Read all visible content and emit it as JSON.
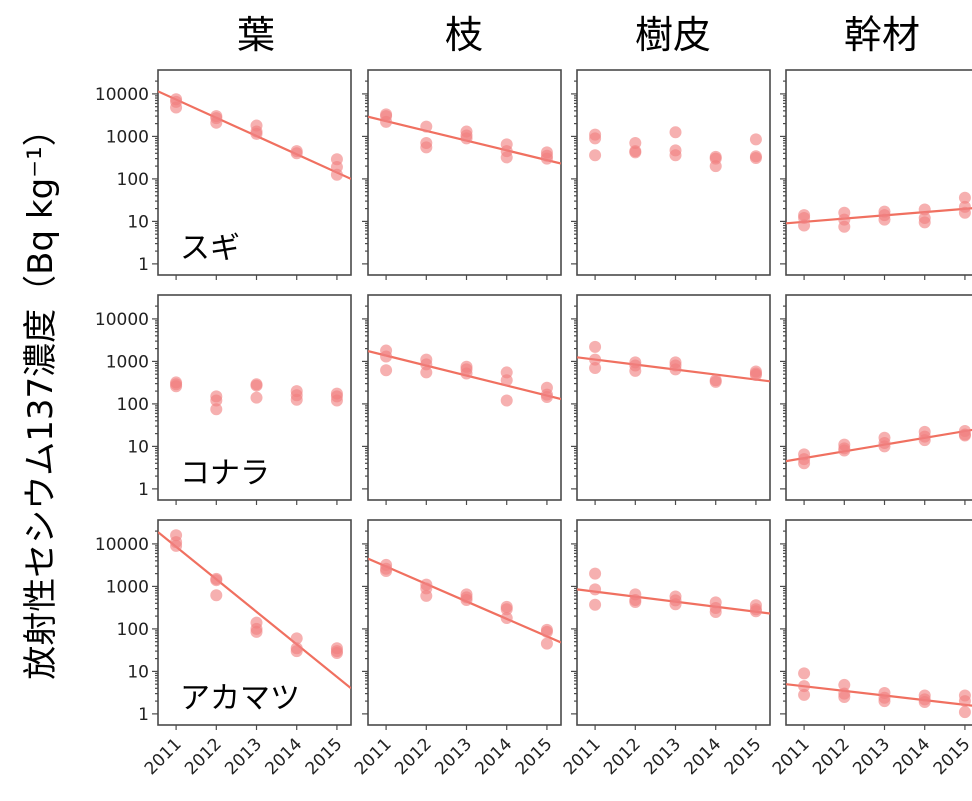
{
  "chart_data": {
    "type": "scatter",
    "ylabel": "放射性セシウム137濃度（Bq kg⁻¹）",
    "yscale": "log",
    "ylim": [
      0.8,
      25000
    ],
    "yticks": [
      1,
      10,
      100,
      1000,
      10000
    ],
    "ytick_labels": [
      "1",
      "10",
      "100",
      "1000",
      "10000"
    ],
    "xlim": [
      2010.55,
      2015.35
    ],
    "xticks": [
      "2011",
      "2012",
      "2013",
      "2014",
      "2015"
    ],
    "columns": [
      "葉",
      "枝",
      "樹皮",
      "幹材"
    ],
    "rows": [
      "スギ",
      "コナラ",
      "アカマツ"
    ],
    "colors": {
      "point": "#f08080",
      "line": "#f07060",
      "frame": "#4a4a4a"
    },
    "panels": [
      {
        "row": "スギ",
        "col": "葉",
        "points": [
          [
            2011,
            7500
          ],
          [
            2011,
            6500
          ],
          [
            2011,
            4800
          ],
          [
            2012,
            3000
          ],
          [
            2012,
            2700
          ],
          [
            2012,
            2100
          ],
          [
            2013,
            1800
          ],
          [
            2013,
            1300
          ],
          [
            2013,
            1150
          ],
          [
            2014,
            450
          ],
          [
            2014,
            400
          ],
          [
            2015,
            290
          ],
          [
            2015,
            190
          ],
          [
            2015,
            125
          ]
        ],
        "fit": [
          [
            2010.55,
            11500
          ],
          [
            2015.35,
            100
          ]
        ]
      },
      {
        "row": "スギ",
        "col": "枝",
        "points": [
          [
            2011,
            3300
          ],
          [
            2011,
            3000
          ],
          [
            2011,
            2200
          ],
          [
            2012,
            1700
          ],
          [
            2012,
            700
          ],
          [
            2012,
            550
          ],
          [
            2013,
            1300
          ],
          [
            2013,
            1050
          ],
          [
            2013,
            900
          ],
          [
            2014,
            650
          ],
          [
            2014,
            450
          ],
          [
            2014,
            320
          ],
          [
            2015,
            420
          ],
          [
            2015,
            350
          ],
          [
            2015,
            300
          ]
        ],
        "fit": [
          [
            2010.55,
            2900
          ],
          [
            2015.35,
            230
          ]
        ]
      },
      {
        "row": "スギ",
        "col": "樹皮",
        "points": [
          [
            2011,
            1100
          ],
          [
            2011,
            900
          ],
          [
            2011,
            360
          ],
          [
            2012,
            700
          ],
          [
            2012,
            450
          ],
          [
            2012,
            420
          ],
          [
            2013,
            1250
          ],
          [
            2013,
            470
          ],
          [
            2013,
            360
          ],
          [
            2014,
            330
          ],
          [
            2014,
            300
          ],
          [
            2014,
            200
          ],
          [
            2015,
            850
          ],
          [
            2015,
            340
          ],
          [
            2015,
            310
          ]
        ],
        "fit": null
      },
      {
        "row": "スギ",
        "col": "幹材",
        "points": [
          [
            2011,
            14
          ],
          [
            2011,
            12
          ],
          [
            2011,
            8
          ],
          [
            2012,
            16
          ],
          [
            2012,
            11
          ],
          [
            2012,
            7.5
          ],
          [
            2013,
            17
          ],
          [
            2013,
            14
          ],
          [
            2013,
            11
          ],
          [
            2014,
            19
          ],
          [
            2014,
            12
          ],
          [
            2014,
            9.5
          ],
          [
            2015,
            36
          ],
          [
            2015,
            22
          ],
          [
            2015,
            16
          ]
        ],
        "fit": [
          [
            2010.55,
            9
          ],
          [
            2015.35,
            21
          ]
        ]
      },
      {
        "row": "コナラ",
        "col": "葉",
        "points": [
          [
            2011,
            320
          ],
          [
            2011,
            290
          ],
          [
            2011,
            260
          ],
          [
            2012,
            150
          ],
          [
            2012,
            120
          ],
          [
            2012,
            75
          ],
          [
            2013,
            290
          ],
          [
            2013,
            270
          ],
          [
            2013,
            140
          ],
          [
            2014,
            200
          ],
          [
            2014,
            160
          ],
          [
            2014,
            125
          ],
          [
            2015,
            175
          ],
          [
            2015,
            150
          ],
          [
            2015,
            120
          ]
        ],
        "fit": null
      },
      {
        "row": "コナラ",
        "col": "枝",
        "points": [
          [
            2011,
            1800
          ],
          [
            2011,
            1300
          ],
          [
            2011,
            620
          ],
          [
            2012,
            1100
          ],
          [
            2012,
            850
          ],
          [
            2012,
            550
          ],
          [
            2013,
            750
          ],
          [
            2013,
            650
          ],
          [
            2013,
            520
          ],
          [
            2014,
            550
          ],
          [
            2014,
            360
          ],
          [
            2014,
            120
          ],
          [
            2015,
            240
          ],
          [
            2015,
            165
          ],
          [
            2015,
            145
          ]
        ],
        "fit": [
          [
            2010.55,
            1750
          ],
          [
            2015.35,
            130
          ]
        ]
      },
      {
        "row": "コナラ",
        "col": "樹皮",
        "points": [
          [
            2011,
            2200
          ],
          [
            2011,
            1100
          ],
          [
            2011,
            700
          ],
          [
            2012,
            950
          ],
          [
            2012,
            800
          ],
          [
            2012,
            600
          ],
          [
            2013,
            950
          ],
          [
            2013,
            800
          ],
          [
            2013,
            650
          ],
          [
            2014,
            360
          ],
          [
            2014,
            330
          ],
          [
            2015,
            580
          ],
          [
            2015,
            520
          ],
          [
            2015,
            480
          ]
        ],
        "fit": [
          [
            2010.55,
            1250
          ],
          [
            2015.35,
            340
          ]
        ]
      },
      {
        "row": "コナラ",
        "col": "幹材",
        "points": [
          [
            2011,
            6.5
          ],
          [
            2011,
            5
          ],
          [
            2011,
            4
          ],
          [
            2012,
            11
          ],
          [
            2012,
            9
          ],
          [
            2012,
            8
          ],
          [
            2013,
            16
          ],
          [
            2013,
            12
          ],
          [
            2013,
            10
          ],
          [
            2014,
            22
          ],
          [
            2014,
            17
          ],
          [
            2014,
            14
          ],
          [
            2015,
            23
          ],
          [
            2015,
            19
          ],
          [
            2015,
            18
          ]
        ],
        "fit": [
          [
            2010.55,
            4.5
          ],
          [
            2015.35,
            26
          ]
        ]
      },
      {
        "row": "アカマツ",
        "col": "葉",
        "points": [
          [
            2011,
            16000
          ],
          [
            2011,
            11000
          ],
          [
            2011,
            9000
          ],
          [
            2012,
            1500
          ],
          [
            2012,
            1400
          ],
          [
            2012,
            620
          ],
          [
            2013,
            140
          ],
          [
            2013,
            100
          ],
          [
            2013,
            85
          ],
          [
            2014,
            60
          ],
          [
            2014,
            35
          ],
          [
            2014,
            30
          ],
          [
            2015,
            35
          ],
          [
            2015,
            30
          ],
          [
            2015,
            27
          ]
        ],
        "fit": [
          [
            2010.55,
            19000
          ],
          [
            2015.35,
            4
          ]
        ]
      },
      {
        "row": "アカマツ",
        "col": "枝",
        "points": [
          [
            2011,
            3200
          ],
          [
            2011,
            2600
          ],
          [
            2011,
            2300
          ],
          [
            2012,
            1100
          ],
          [
            2012,
            900
          ],
          [
            2012,
            600
          ],
          [
            2013,
            650
          ],
          [
            2013,
            550
          ],
          [
            2013,
            480
          ],
          [
            2014,
            330
          ],
          [
            2014,
            290
          ],
          [
            2014,
            180
          ],
          [
            2015,
            95
          ],
          [
            2015,
            85
          ],
          [
            2015,
            45
          ]
        ],
        "fit": [
          [
            2010.55,
            4500
          ],
          [
            2015.35,
            48
          ]
        ]
      },
      {
        "row": "アカマツ",
        "col": "樹皮",
        "points": [
          [
            2011,
            2000
          ],
          [
            2011,
            850
          ],
          [
            2011,
            370
          ],
          [
            2012,
            650
          ],
          [
            2012,
            480
          ],
          [
            2012,
            430
          ],
          [
            2013,
            580
          ],
          [
            2013,
            470
          ],
          [
            2013,
            380
          ],
          [
            2014,
            420
          ],
          [
            2014,
            310
          ],
          [
            2014,
            250
          ],
          [
            2015,
            360
          ],
          [
            2015,
            290
          ],
          [
            2015,
            260
          ]
        ],
        "fit": [
          [
            2010.55,
            850
          ],
          [
            2015.35,
            230
          ]
        ]
      },
      {
        "row": "アカマツ",
        "col": "幹材",
        "points": [
          [
            2011,
            9
          ],
          [
            2011,
            4.5
          ],
          [
            2011,
            2.8
          ],
          [
            2012,
            4.8
          ],
          [
            2012,
            3
          ],
          [
            2012,
            2.5
          ],
          [
            2013,
            3.1
          ],
          [
            2013,
            2.4
          ],
          [
            2013,
            2
          ],
          [
            2014,
            2.7
          ],
          [
            2014,
            2.2
          ],
          [
            2014,
            1.9
          ],
          [
            2015,
            2.7
          ],
          [
            2015,
            2
          ],
          [
            2015,
            1.1
          ]
        ],
        "fit": [
          [
            2010.55,
            5
          ],
          [
            2015.35,
            1.5
          ]
        ]
      }
    ]
  }
}
